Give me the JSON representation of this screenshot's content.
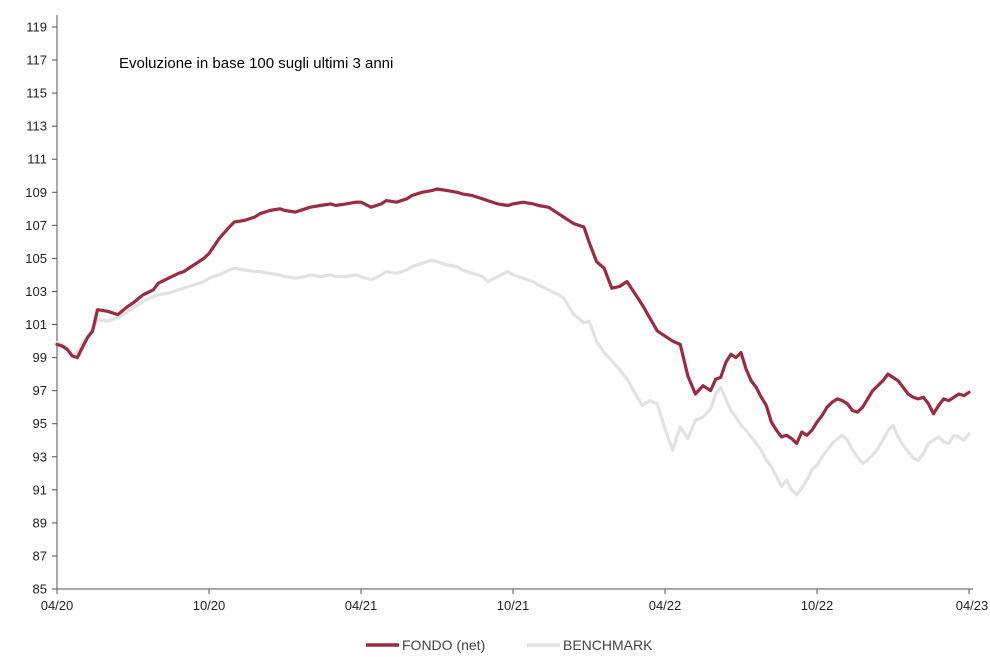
{
  "chart_data": {
    "type": "line",
    "title": "Evoluzione in base 100 sugli ultimi 3 anni",
    "xlabel": "",
    "ylabel": "",
    "ylim": [
      85,
      119
    ],
    "yticks": [
      "85",
      "87",
      "89",
      "91",
      "93",
      "95",
      "97",
      "99",
      "101",
      "103",
      "105",
      "107",
      "109",
      "111",
      "113",
      "115",
      "117",
      "119"
    ],
    "xticks": [
      {
        "label": "04/20",
        "month": 0
      },
      {
        "label": "10/20",
        "month": 6
      },
      {
        "label": "04/21",
        "month": 12
      },
      {
        "label": "10/21",
        "month": 18
      },
      {
        "label": "04/22",
        "month": 24
      },
      {
        "label": "10/22",
        "month": 30
      },
      {
        "label": "04/23",
        "month": 36
      }
    ],
    "grid": false,
    "legend": "bottom",
    "series": [
      {
        "name": "FONDO (net)",
        "color": "#9b2c3f",
        "month": [
          0,
          0.2,
          0.4,
          0.6,
          0.8,
          1,
          1.2,
          1.4,
          1.6,
          2,
          2.4,
          2.8,
          3,
          3.4,
          3.8,
          4,
          4.4,
          4.8,
          5,
          5.4,
          5.8,
          6,
          6.4,
          6.8,
          7,
          7.4,
          7.8,
          8,
          8.4,
          8.8,
          9,
          9.4,
          9.8,
          10,
          10.4,
          10.8,
          11,
          11.4,
          11.8,
          12,
          12.4,
          12.8,
          13,
          13.4,
          13.8,
          14,
          14.4,
          14.8,
          15,
          15.4,
          15.8,
          16,
          16.4,
          16.8,
          17,
          17.4,
          17.8,
          18,
          18.4,
          18.8,
          19,
          19.4,
          19.8,
          20,
          20.4,
          20.8,
          21,
          21.3,
          21.6,
          21.9,
          22.2,
          22.5,
          22.8,
          23.1,
          23.4,
          23.7,
          24,
          24.3,
          24.6,
          24.9,
          25.2,
          25.5,
          25.8,
          26,
          26.2,
          26.4,
          26.6,
          26.8,
          27,
          27.2,
          27.4,
          27.6,
          27.8,
          28,
          28.2,
          28.4,
          28.6,
          28.8,
          29,
          29.2,
          29.4,
          29.6,
          29.8,
          30,
          30.2,
          30.4,
          30.6,
          30.8,
          31,
          31.2,
          31.4,
          31.6,
          31.8,
          32,
          32.2,
          32.4,
          32.6,
          32.8,
          33,
          33.2,
          33.4,
          33.6,
          33.8,
          34,
          34.2,
          34.4,
          34.6,
          34.8,
          35,
          35.2,
          35.4,
          35.6,
          35.8,
          36
        ],
        "values": [
          99.8,
          99.7,
          99.5,
          99.1,
          99.0,
          99.6,
          100.2,
          100.6,
          101.9,
          101.8,
          101.6,
          102.1,
          102.3,
          102.8,
          103.1,
          103.5,
          103.8,
          104.1,
          104.2,
          104.6,
          105.0,
          105.3,
          106.2,
          106.9,
          107.2,
          107.3,
          107.5,
          107.7,
          107.9,
          108.0,
          107.9,
          107.8,
          108.0,
          108.1,
          108.2,
          108.3,
          108.2,
          108.3,
          108.4,
          108.4,
          108.1,
          108.3,
          108.5,
          108.4,
          108.6,
          108.8,
          109.0,
          109.1,
          109.2,
          109.1,
          109.0,
          108.9,
          108.8,
          108.6,
          108.5,
          108.3,
          108.2,
          108.3,
          108.4,
          108.3,
          108.2,
          108.1,
          107.7,
          107.5,
          107.1,
          106.9,
          106.0,
          104.8,
          104.4,
          103.2,
          103.3,
          103.6,
          102.9,
          102.2,
          101.4,
          100.6,
          100.3,
          100.0,
          99.8,
          97.9,
          96.8,
          97.3,
          97.0,
          97.7,
          97.8,
          98.7,
          99.2,
          99.0,
          99.3,
          98.3,
          97.6,
          97.2,
          96.6,
          96.1,
          95.1,
          94.6,
          94.2,
          94.3,
          94.1,
          93.8,
          94.5,
          94.3,
          94.6,
          95.1,
          95.5,
          96.0,
          96.3,
          96.5,
          96.4,
          96.2,
          95.8,
          95.7,
          96.0,
          96.5,
          97.0,
          97.3,
          97.6,
          98.0,
          97.8,
          97.6,
          97.2,
          96.8,
          96.6,
          96.5,
          96.6,
          96.2,
          95.6,
          96.1,
          96.5,
          96.4,
          96.6,
          96.8,
          96.7,
          96.9
        ]
      },
      {
        "name": "BENCHMARK",
        "color": "#e2e2e2",
        "month": [
          0,
          0.2,
          0.4,
          0.6,
          0.8,
          1,
          1.2,
          1.4,
          1.6,
          2,
          2.4,
          2.8,
          3,
          3.4,
          3.8,
          4,
          4.4,
          4.8,
          5,
          5.4,
          5.8,
          6,
          6.4,
          6.8,
          7,
          7.4,
          7.8,
          8,
          8.4,
          8.8,
          9,
          9.4,
          9.8,
          10,
          10.4,
          10.8,
          11,
          11.4,
          11.8,
          12,
          12.4,
          12.8,
          13,
          13.4,
          13.8,
          14,
          14.4,
          14.8,
          15,
          15.4,
          15.8,
          16,
          16.4,
          16.8,
          17,
          17.4,
          17.8,
          18,
          18.4,
          18.8,
          19,
          19.4,
          19.8,
          20,
          20.4,
          20.8,
          21,
          21.3,
          21.6,
          21.9,
          22.2,
          22.5,
          22.8,
          23.1,
          23.4,
          23.7,
          24,
          24.3,
          24.6,
          24.9,
          25.2,
          25.5,
          25.8,
          26,
          26.2,
          26.4,
          26.6,
          26.8,
          27,
          27.2,
          27.4,
          27.6,
          27.8,
          28,
          28.2,
          28.4,
          28.6,
          28.8,
          29,
          29.2,
          29.4,
          29.6,
          29.8,
          30,
          30.2,
          30.4,
          30.6,
          30.8,
          31,
          31.2,
          31.4,
          31.6,
          31.8,
          32,
          32.2,
          32.4,
          32.6,
          32.8,
          33,
          33.2,
          33.4,
          33.6,
          33.8,
          34,
          34.2,
          34.4,
          34.6,
          34.8,
          35,
          35.2,
          35.4,
          35.6,
          35.8,
          36
        ],
        "values": [
          99.9,
          99.8,
          99.6,
          99.2,
          99.3,
          99.9,
          100.3,
          100.7,
          101.3,
          101.2,
          101.4,
          101.8,
          102.0,
          102.4,
          102.7,
          102.8,
          102.9,
          103.1,
          103.2,
          103.4,
          103.6,
          103.8,
          104.0,
          104.3,
          104.4,
          104.3,
          104.2,
          104.2,
          104.1,
          104.0,
          103.9,
          103.8,
          103.9,
          104.0,
          103.9,
          104.0,
          103.9,
          103.9,
          104.0,
          103.9,
          103.7,
          104.0,
          104.2,
          104.1,
          104.3,
          104.5,
          104.7,
          104.9,
          104.8,
          104.6,
          104.5,
          104.3,
          104.1,
          103.9,
          103.6,
          103.9,
          104.2,
          104.0,
          103.8,
          103.6,
          103.4,
          103.1,
          102.8,
          102.6,
          101.6,
          101.1,
          101.2,
          100.0,
          99.3,
          98.8,
          98.3,
          97.7,
          96.9,
          96.1,
          96.4,
          96.2,
          94.7,
          93.4,
          94.8,
          94.1,
          95.2,
          95.4,
          95.9,
          96.8,
          97.2,
          96.5,
          95.8,
          95.4,
          94.9,
          94.6,
          94.2,
          93.8,
          93.4,
          92.8,
          92.4,
          91.8,
          91.2,
          91.6,
          91.0,
          90.7,
          91.1,
          91.6,
          92.2,
          92.5,
          93.0,
          93.4,
          93.8,
          94.1,
          94.3,
          94.0,
          93.4,
          93.0,
          92.6,
          92.8,
          93.1,
          93.5,
          94.0,
          94.6,
          94.9,
          94.2,
          93.7,
          93.3,
          92.9,
          92.8,
          93.2,
          93.8,
          94.0,
          94.2,
          93.9,
          93.8,
          94.3,
          94.2,
          94.0,
          94.4
        ]
      }
    ]
  }
}
